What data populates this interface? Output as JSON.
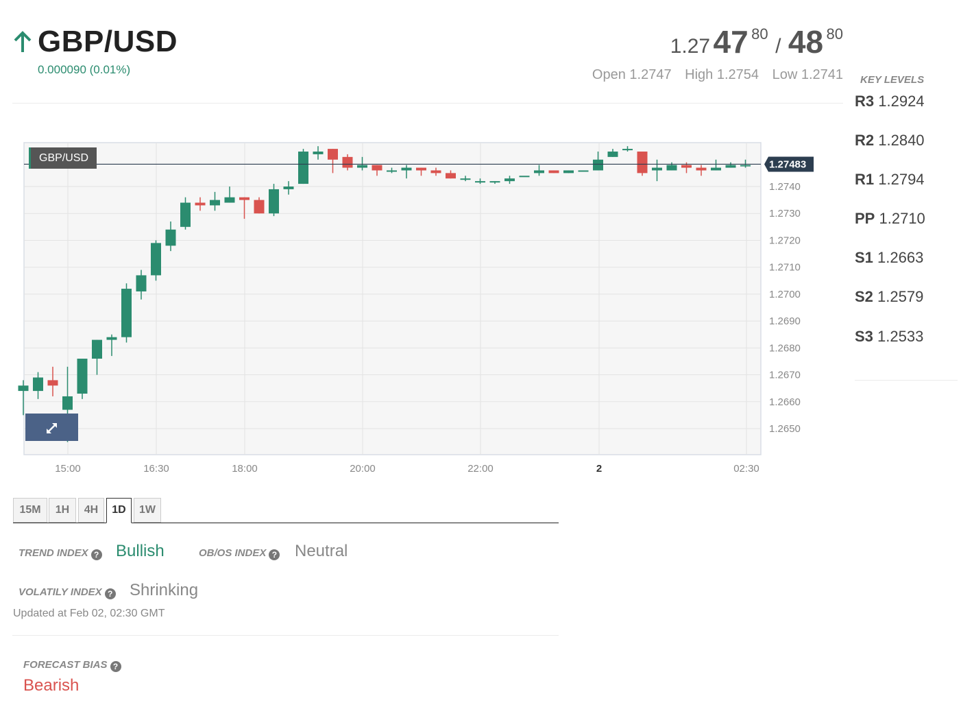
{
  "header": {
    "pair": "GBP/USD",
    "change": "0.000090 (0.01%)",
    "direction_icon": "arrow-up-icon",
    "up_color": "#2b8c6f"
  },
  "quote": {
    "bid_prefix": "1.27",
    "bid_big": "47",
    "bid_sup": "80",
    "separator": "/",
    "ask_big": "48",
    "ask_sup": "80"
  },
  "ohl": {
    "open": "Open 1.2747",
    "high": "High 1.2754",
    "low": "Low 1.2741"
  },
  "key_levels": {
    "title": "KEY LEVELS",
    "levels": [
      {
        "name": "R3",
        "value": "1.2924"
      },
      {
        "name": "R2",
        "value": "1.2840"
      },
      {
        "name": "R1",
        "value": "1.2794"
      },
      {
        "name": "PP",
        "value": "1.2710"
      },
      {
        "name": "S1",
        "value": "1.2663"
      },
      {
        "name": "S2",
        "value": "1.2579"
      },
      {
        "name": "S3",
        "value": "1.2533"
      }
    ]
  },
  "chart_data": {
    "type": "candlestick",
    "series_label": "GBP/USD",
    "current_price": "1.27483",
    "up_color": "#2b8c6f",
    "down_color": "#d9534f",
    "ylim": [
      1.2645,
      1.2757
    ],
    "y_ticks": [
      "1.2650",
      "1.2660",
      "1.2670",
      "1.2680",
      "1.2690",
      "1.2700",
      "1.2710",
      "1.2720",
      "1.2730",
      "1.2740"
    ],
    "x_ticks": [
      "15:00",
      "16:30",
      "18:00",
      "20:00",
      "22:00",
      "2",
      "02:30"
    ],
    "grid": true,
    "candles": [
      {
        "o": 1.2664,
        "h": 1.2668,
        "l": 1.2655,
        "c": 1.2666
      },
      {
        "o": 1.2664,
        "h": 1.2671,
        "l": 1.2661,
        "c": 1.2669
      },
      {
        "o": 1.2668,
        "h": 1.2673,
        "l": 1.2662,
        "c": 1.2666
      },
      {
        "o": 1.2657,
        "h": 1.2673,
        "l": 1.2645,
        "c": 1.2662
      },
      {
        "o": 1.2663,
        "h": 1.2676,
        "l": 1.2661,
        "c": 1.2676
      },
      {
        "o": 1.2676,
        "h": 1.2683,
        "l": 1.267,
        "c": 1.2683
      },
      {
        "o": 1.2683,
        "h": 1.2685,
        "l": 1.2677,
        "c": 1.2684
      },
      {
        "o": 1.2684,
        "h": 1.2704,
        "l": 1.2682,
        "c": 1.2702
      },
      {
        "o": 1.2701,
        "h": 1.2709,
        "l": 1.2698,
        "c": 1.2707
      },
      {
        "o": 1.2707,
        "h": 1.272,
        "l": 1.2705,
        "c": 1.2719
      },
      {
        "o": 1.2718,
        "h": 1.2727,
        "l": 1.2716,
        "c": 1.2724
      },
      {
        "o": 1.2725,
        "h": 1.2736,
        "l": 1.2724,
        "c": 1.2734
      },
      {
        "o": 1.2734,
        "h": 1.2736,
        "l": 1.2731,
        "c": 1.2733
      },
      {
        "o": 1.2733,
        "h": 1.2738,
        "l": 1.2731,
        "c": 1.2735
      },
      {
        "o": 1.2734,
        "h": 1.274,
        "l": 1.2734,
        "c": 1.2736
      },
      {
        "o": 1.2736,
        "h": 1.2736,
        "l": 1.2728,
        "c": 1.2735
      },
      {
        "o": 1.2735,
        "h": 1.2736,
        "l": 1.273,
        "c": 1.273
      },
      {
        "o": 1.273,
        "h": 1.2741,
        "l": 1.2729,
        "c": 1.2739
      },
      {
        "o": 1.2739,
        "h": 1.2742,
        "l": 1.2737,
        "c": 1.274
      },
      {
        "o": 1.2741,
        "h": 1.2754,
        "l": 1.2741,
        "c": 1.2753
      },
      {
        "o": 1.2752,
        "h": 1.2755,
        "l": 1.275,
        "c": 1.2753
      },
      {
        "o": 1.2754,
        "h": 1.2754,
        "l": 1.2745,
        "c": 1.275
      },
      {
        "o": 1.2751,
        "h": 1.2752,
        "l": 1.2746,
        "c": 1.2747
      },
      {
        "o": 1.2747,
        "h": 1.2751,
        "l": 1.2746,
        "c": 1.2748
      },
      {
        "o": 1.2748,
        "h": 1.2748,
        "l": 1.2744,
        "c": 1.2746
      },
      {
        "o": 1.2746,
        "h": 1.2747,
        "l": 1.2745,
        "c": 1.2746
      },
      {
        "o": 1.2746,
        "h": 1.2748,
        "l": 1.2743,
        "c": 1.2747
      },
      {
        "o": 1.2747,
        "h": 1.2747,
        "l": 1.2744,
        "c": 1.2746
      },
      {
        "o": 1.2746,
        "h": 1.2747,
        "l": 1.2744,
        "c": 1.2745
      },
      {
        "o": 1.2745,
        "h": 1.2746,
        "l": 1.2743,
        "c": 1.2743
      },
      {
        "o": 1.2743,
        "h": 1.2744,
        "l": 1.2742,
        "c": 1.2743
      },
      {
        "o": 1.2742,
        "h": 1.2743,
        "l": 1.2741,
        "c": 1.2742
      },
      {
        "o": 1.2742,
        "h": 1.2742,
        "l": 1.2741,
        "c": 1.2742
      },
      {
        "o": 1.2742,
        "h": 1.2744,
        "l": 1.2741,
        "c": 1.2743
      },
      {
        "o": 1.2744,
        "h": 1.2744,
        "l": 1.2744,
        "c": 1.2744
      },
      {
        "o": 1.2745,
        "h": 1.2748,
        "l": 1.2744,
        "c": 1.2746
      },
      {
        "o": 1.2746,
        "h": 1.2746,
        "l": 1.2745,
        "c": 1.2745
      },
      {
        "o": 1.2745,
        "h": 1.2746,
        "l": 1.2745,
        "c": 1.2746
      },
      {
        "o": 1.2746,
        "h": 1.2746,
        "l": 1.2746,
        "c": 1.2746
      },
      {
        "o": 1.2746,
        "h": 1.2753,
        "l": 1.2746,
        "c": 1.275
      },
      {
        "o": 1.2751,
        "h": 1.2754,
        "l": 1.2751,
        "c": 1.2753
      },
      {
        "o": 1.2754,
        "h": 1.2755,
        "l": 1.2753,
        "c": 1.2754
      },
      {
        "o": 1.2753,
        "h": 1.2753,
        "l": 1.2744,
        "c": 1.2745
      },
      {
        "o": 1.2746,
        "h": 1.275,
        "l": 1.2742,
        "c": 1.2747
      },
      {
        "o": 1.2746,
        "h": 1.2749,
        "l": 1.2746,
        "c": 1.2748
      },
      {
        "o": 1.2748,
        "h": 1.2749,
        "l": 1.2745,
        "c": 1.2747
      },
      {
        "o": 1.2747,
        "h": 1.2748,
        "l": 1.2744,
        "c": 1.2746
      },
      {
        "o": 1.2746,
        "h": 1.275,
        "l": 1.2746,
        "c": 1.2747
      },
      {
        "o": 1.2747,
        "h": 1.2749,
        "l": 1.2747,
        "c": 1.2748
      },
      {
        "o": 1.2748,
        "h": 1.275,
        "l": 1.2747,
        "c": 1.2748
      }
    ]
  },
  "tabs": [
    "15M",
    "1H",
    "4H",
    "1D",
    "1W"
  ],
  "active_tab": "1D",
  "indices": {
    "trend_label": "TREND INDEX",
    "trend_value": "Bullish",
    "obos_label": "OB/OS INDEX",
    "obos_value": "Neutral",
    "volatility_label": "VOLATILY INDEX",
    "volatility_value": "Shrinking",
    "updated": "Updated at Feb 02, 02:30 GMT",
    "forecast_label": "FORECAST BIAS",
    "forecast_value": "Bearish",
    "help_icon": "question-circle-icon",
    "bullish_color": "#2b8c6f",
    "neutral_color": "#888888",
    "bearish_color": "#d9534f"
  }
}
